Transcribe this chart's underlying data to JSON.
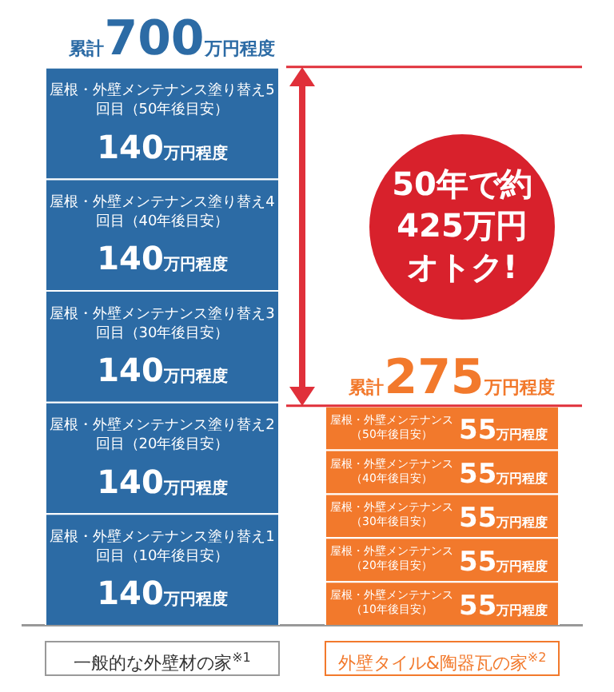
{
  "chart_data": {
    "type": "bar",
    "stacked": true,
    "legend": false,
    "grid": false,
    "categories": [
      "一般的な外壁材の家$^{※1}$",
      "外壁タイル&陶器瓦の家$^{※2}$"
    ],
    "series": [
      {
        "colors": [
          "#2c6ba5",
          "#f2792c"
        ],
        "values": [
          140,
          55
        ],
        "value_labels": [
          "140万円程度",
          "55万円程度"
        ]
      },
      {
        "colors": [
          "#2c6ba5",
          "#f2792c"
        ],
        "values": [
          140,
          55
        ],
        "value_labels": [
          "140万円程度",
          "55万円程度"
        ]
      },
      {
        "colors": [
          "#2c6ba5",
          "#f2792c"
        ],
        "values": [
          140,
          55
        ],
        "value_labels": [
          "140万円程度",
          "55万円程度"
        ]
      },
      {
        "colors": [
          "#2c6ba5",
          "#f2792c"
        ],
        "values": [
          140,
          55
        ],
        "value_labels": [
          "140万円程度",
          "55万円程度"
        ]
      },
      {
        "colors": [
          "#2c6ba5",
          "#f2792c"
        ],
        "values": [
          140,
          55
        ],
        "value_labels": [
          "140万円程度",
          "55万円程度"
        ]
      }
    ],
    "totals": [
      "累計700万円程度",
      "累計275万円程度"
    ],
    "ref_lines": [
      {
        "axis": "y",
        "value": 700,
        "color": "#e0303a"
      },
      {
        "axis": "y",
        "value": 275,
        "color": "#e0303a"
      }
    ],
    "annotations": [
      "屋根・外壁メンテナンス塗り替え1回目（10年後目安）",
      "屋根・外壁メンテナンス（10年後目安）",
      "屋根・外壁メンテナンス塗り替え2回目（20年後目安）",
      "屋根・外壁メンテナンス（20年後目安）",
      "屋根・外壁メンテナンス塗り替え3回目（30年後目安）",
      "屋根・外壁メンテナンス（30年後目安）",
      "屋根・外壁メンテナンス塗り替え4回目（40年後目安）",
      "屋根・外壁メンテナンス（40年後目安）",
      "屋根・外壁メンテナンス塗り替え5回目（50年後目安）",
      "屋根・外壁メンテナンス（50年後目安）",
      "50年で約425万円オトク!"
    ]
  }
}
